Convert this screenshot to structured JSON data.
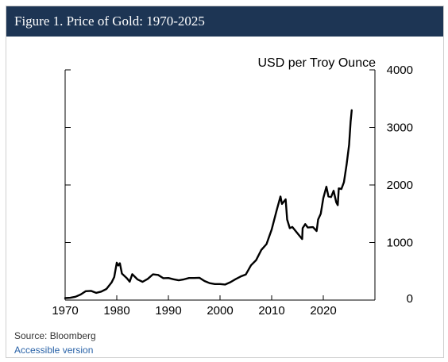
{
  "figure": {
    "title": "Figure 1. Price of Gold: 1970-2025",
    "source": "Source: Bloomberg",
    "accessible_link": "Accessible version",
    "header_color": "#1d3554",
    "link_color": "#2a63a8"
  },
  "chart_data": {
    "type": "line",
    "title": "Figure 1. Price of Gold: 1970-2025",
    "ylabel": "USD per Troy Ounce",
    "xlabel": "",
    "xlim": [
      1970,
      2030
    ],
    "ylim": [
      0,
      4000
    ],
    "x_ticks": [
      1970,
      1980,
      1990,
      2000,
      2010,
      2020
    ],
    "y_ticks": [
      0,
      1000,
      2000,
      3000,
      4000
    ],
    "y_axis_side": "right",
    "grid": false,
    "line_color": "#000000",
    "series": [
      {
        "x": [
          1970,
          1971,
          1972,
          1973,
          1974,
          1975,
          1976,
          1977,
          1978,
          1979,
          1979.5,
          1980,
          1980.3,
          1980.6,
          1981,
          1982,
          1982.5,
          1983,
          1984,
          1985,
          1986,
          1987,
          1988,
          1989,
          1990,
          1991,
          1992,
          1993,
          1994,
          1995,
          1996,
          1997,
          1998,
          1999,
          2000,
          2001,
          2002,
          2003,
          2004,
          2005,
          2006,
          2007,
          2008,
          2009,
          2010,
          2011,
          2011.7,
          2012,
          2012.7,
          2013,
          2013.5,
          2014,
          2015,
          2015.9,
          2016,
          2016.5,
          2017,
          2018,
          2018.7,
          2019,
          2019.5,
          2020,
          2020.6,
          2021,
          2021.5,
          2022,
          2022.5,
          2022.8,
          2023,
          2023.5,
          2024,
          2024.5,
          2025,
          2025.3,
          2025.5
        ],
        "y": [
          35,
          40,
          58,
          97,
          154,
          160,
          125,
          148,
          193,
          306,
          400,
          650,
          600,
          640,
          460,
          375,
          320,
          450,
          360,
          317,
          368,
          447,
          437,
          381,
          383,
          362,
          344,
          360,
          384,
          384,
          388,
          331,
          294,
          279,
          279,
          271,
          310,
          363,
          410,
          445,
          604,
          695,
          872,
          972,
          1225,
          1570,
          1800,
          1670,
          1750,
          1400,
          1250,
          1270,
          1160,
          1060,
          1250,
          1320,
          1260,
          1268,
          1200,
          1400,
          1500,
          1770,
          1970,
          1800,
          1790,
          1900,
          1700,
          1650,
          1940,
          1930,
          2050,
          2350,
          2700,
          3100,
          3300
        ]
      }
    ]
  }
}
